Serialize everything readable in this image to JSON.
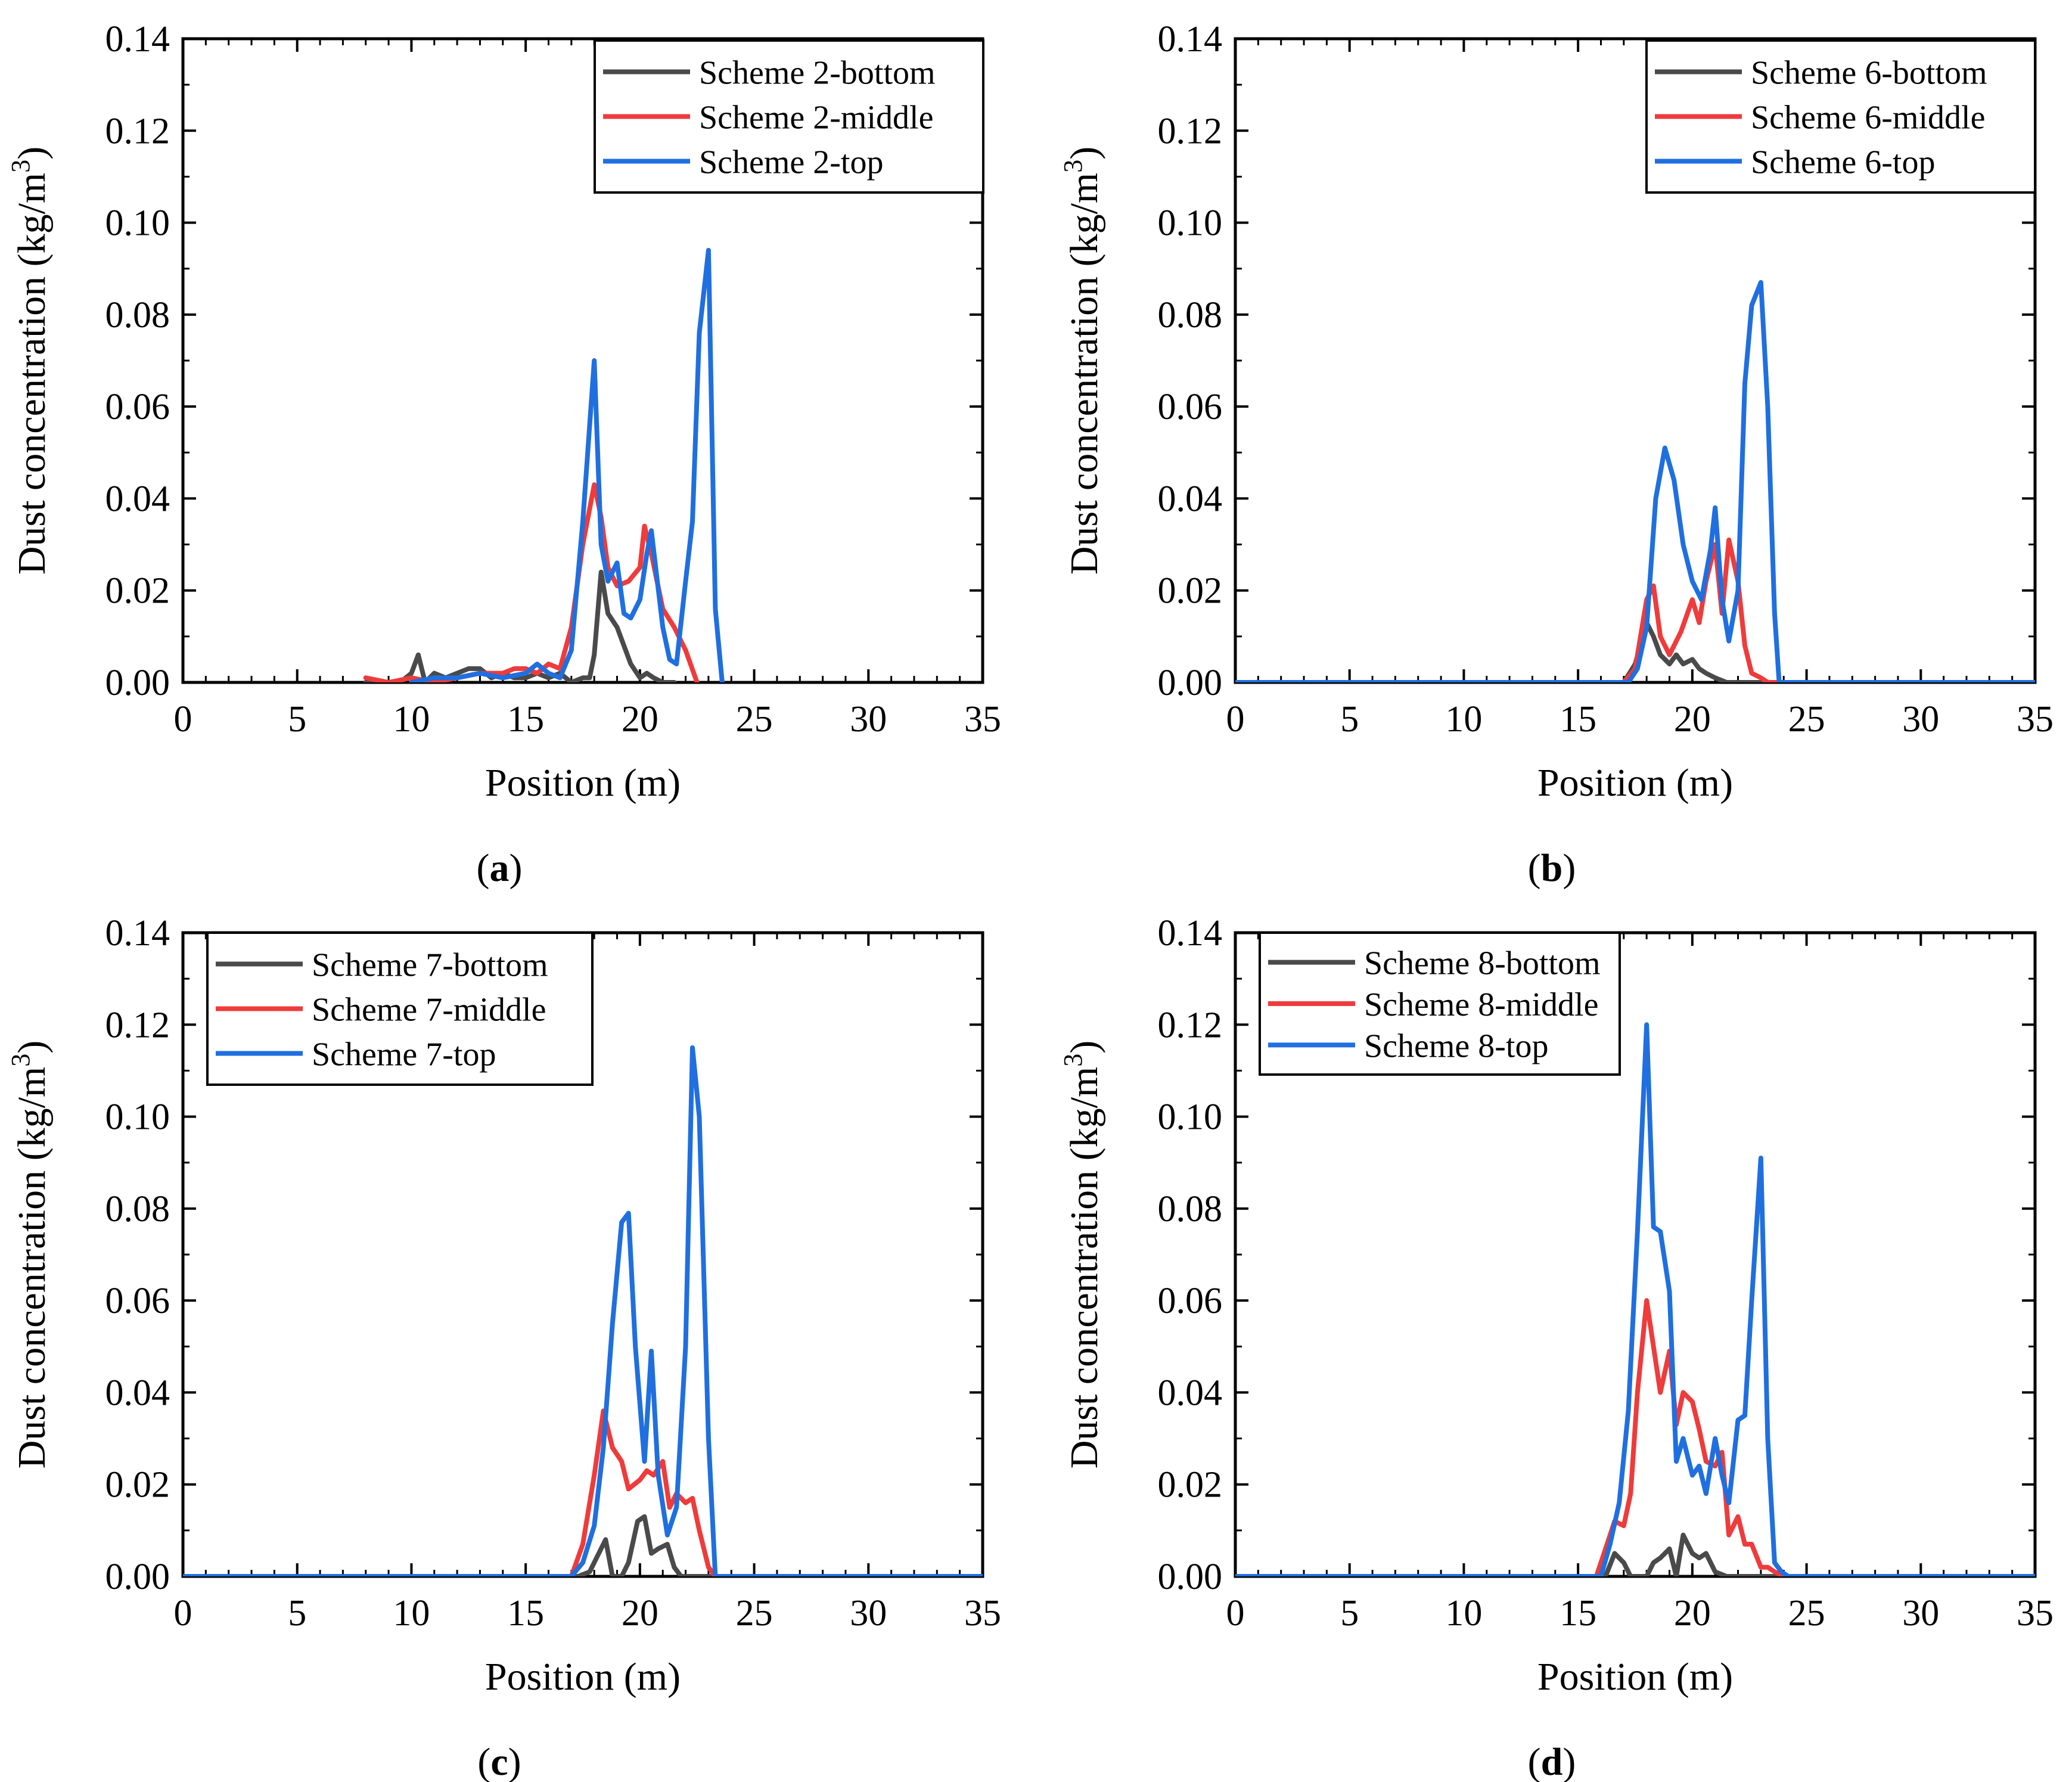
{
  "colors": {
    "bottom": "#4a4a4a",
    "middle": "#ef3b3b",
    "top": "#1f6fe0"
  },
  "chart_data": [
    {
      "type": "line",
      "panel_label": "a",
      "xlabel": "Position (m)",
      "ylabel": "Dust concentration (kg/m",
      "ylabel_sup": "3",
      "ylabel_close": ")",
      "xlim": [
        0,
        35
      ],
      "ylim": [
        0,
        0.14
      ],
      "xticks": [
        0,
        5,
        10,
        15,
        20,
        25,
        30,
        35
      ],
      "xtick_labels": [
        "0",
        "5",
        "10",
        "15",
        "20",
        "25",
        "30",
        "35"
      ],
      "yticks": [
        0,
        0.02,
        0.04,
        0.06,
        0.08,
        0.1,
        0.12,
        0.14
      ],
      "ytick_labels": [
        "0.00",
        "0.02",
        "0.04",
        "0.06",
        "0.08",
        "0.10",
        "0.12",
        "0.14"
      ],
      "legend_position": "top-right",
      "series": [
        {
          "name": "Scheme 2-bottom",
          "color_key": "bottom",
          "x": [
            8,
            9,
            9.5,
            10,
            10.3,
            10.6,
            11,
            11.5,
            12,
            12.5,
            13,
            13.5,
            14,
            14.5,
            15,
            15.5,
            16,
            16.5,
            17,
            17.5,
            17.8,
            18,
            18.3,
            18.6,
            19,
            19.3,
            19.6,
            20,
            20.3,
            20.6,
            21,
            21.5
          ],
          "y": [
            0,
            0,
            0,
            0.002,
            0.006,
            0,
            0.002,
            0.001,
            0.002,
            0.003,
            0.003,
            0.001,
            0.002,
            0.001,
            0.001,
            0.002,
            0.001,
            0.002,
            0,
            0.001,
            0.001,
            0.006,
            0.024,
            0.015,
            0.012,
            0.008,
            0.004,
            0.001,
            0.002,
            0.001,
            0,
            0
          ]
        },
        {
          "name": "Scheme 2-middle",
          "color_key": "middle",
          "x": [
            8,
            9,
            10,
            11,
            12,
            13,
            14,
            14.5,
            15,
            15.5,
            16,
            16.5,
            17,
            17.5,
            18,
            18.3,
            18.6,
            19,
            19.5,
            20,
            20.2,
            20.5,
            21,
            21.5,
            22,
            22.5
          ],
          "y": [
            0.001,
            0,
            0.001,
            0,
            0.001,
            0.002,
            0.002,
            0.003,
            0.003,
            0.002,
            0.004,
            0.003,
            0.012,
            0.03,
            0.043,
            0.036,
            0.025,
            0.021,
            0.022,
            0.025,
            0.034,
            0.028,
            0.016,
            0.012,
            0.007,
            0
          ]
        },
        {
          "name": "Scheme 2-top",
          "color_key": "top",
          "x": [
            10,
            11,
            12,
            13,
            14,
            15,
            15.5,
            16,
            16.5,
            17,
            17.5,
            18,
            18.3,
            18.6,
            19,
            19.3,
            19.6,
            20,
            20.3,
            20.5,
            21,
            21.3,
            21.6,
            22,
            22.3,
            22.6,
            23,
            23.3,
            23.6
          ],
          "y": [
            0,
            0.001,
            0.001,
            0.002,
            0.001,
            0.002,
            0.004,
            0.002,
            0.001,
            0.007,
            0.035,
            0.07,
            0.03,
            0.022,
            0.026,
            0.015,
            0.014,
            0.018,
            0.028,
            0.033,
            0.012,
            0.005,
            0.004,
            0.022,
            0.035,
            0.076,
            0.094,
            0.016,
            0
          ]
        }
      ],
      "legend": [
        "Scheme 2-bottom",
        "Scheme 2-middle",
        "Scheme 2-top"
      ]
    },
    {
      "type": "line",
      "panel_label": "b",
      "xlabel": "Position (m)",
      "ylabel": "Dust concentration (kg/m",
      "ylabel_sup": "3",
      "ylabel_close": ")",
      "xlim": [
        0,
        35
      ],
      "ylim": [
        0,
        0.14
      ],
      "xticks": [
        0,
        5,
        10,
        15,
        20,
        25,
        30,
        35
      ],
      "xtick_labels": [
        "0",
        "5",
        "10",
        "15",
        "20",
        "25",
        "30",
        "35"
      ],
      "yticks": [
        0,
        0.02,
        0.04,
        0.06,
        0.08,
        0.1,
        0.12,
        0.14
      ],
      "ytick_labels": [
        "0.00",
        "0.02",
        "0.04",
        "0.06",
        "0.08",
        "0.10",
        "0.12",
        "0.14"
      ],
      "legend_position": "top-right",
      "series": [
        {
          "name": "Scheme 6-bottom",
          "color_key": "bottom",
          "x": [
            0,
            17,
            17.5,
            18,
            18.3,
            18.6,
            19,
            19.3,
            19.6,
            20,
            20.3,
            20.6,
            21,
            21.5,
            35
          ],
          "y": [
            0,
            0,
            0.004,
            0.013,
            0.01,
            0.006,
            0.004,
            0.006,
            0.004,
            0.005,
            0.003,
            0.002,
            0.001,
            0,
            0
          ]
        },
        {
          "name": "Scheme 6-middle",
          "color_key": "middle",
          "x": [
            0,
            17,
            17.5,
            18,
            18.3,
            18.6,
            19,
            19.5,
            20,
            20.3,
            20.6,
            21,
            21.3,
            21.6,
            22,
            22.3,
            22.6,
            23,
            23.3,
            35
          ],
          "y": [
            0,
            0,
            0.003,
            0.018,
            0.021,
            0.01,
            0.006,
            0.011,
            0.018,
            0.013,
            0.022,
            0.03,
            0.015,
            0.031,
            0.022,
            0.008,
            0.002,
            0.001,
            0,
            0
          ]
        },
        {
          "name": "Scheme 6-top",
          "color_key": "top",
          "x": [
            0,
            17.2,
            17.6,
            18,
            18.4,
            18.8,
            19.2,
            19.6,
            20,
            20.4,
            20.8,
            21,
            21.3,
            21.6,
            22,
            22.3,
            22.6,
            23,
            23.3,
            23.6,
            23.8,
            35
          ],
          "y": [
            0,
            0,
            0.003,
            0.012,
            0.04,
            0.051,
            0.044,
            0.03,
            0.022,
            0.018,
            0.029,
            0.038,
            0.018,
            0.009,
            0.02,
            0.065,
            0.082,
            0.087,
            0.06,
            0.015,
            0,
            0
          ]
        }
      ],
      "legend": [
        "Scheme 6-bottom",
        "Scheme 6-middle",
        "Scheme 6-top"
      ]
    },
    {
      "type": "line",
      "panel_label": "c",
      "xlabel": "Position (m)",
      "ylabel": "Dust concentration (kg/m",
      "ylabel_sup": "3",
      "ylabel_close": ")",
      "xlim": [
        0,
        35
      ],
      "ylim": [
        0,
        0.14
      ],
      "xticks": [
        0,
        5,
        10,
        15,
        20,
        25,
        30,
        35
      ],
      "xtick_labels": [
        "0",
        "5",
        "10",
        "15",
        "20",
        "25",
        "30",
        "35"
      ],
      "yticks": [
        0,
        0.02,
        0.04,
        0.06,
        0.08,
        0.1,
        0.12,
        0.14
      ],
      "ytick_labels": [
        "0.00",
        "0.02",
        "0.04",
        "0.06",
        "0.08",
        "0.10",
        "0.12",
        "0.14"
      ],
      "legend_position": "top-left",
      "series": [
        {
          "name": "Scheme 7-bottom",
          "color_key": "bottom",
          "x": [
            0,
            17.3,
            17.8,
            18.2,
            18.5,
            18.8,
            19.2,
            19.5,
            19.9,
            20.2,
            20.5,
            20.8,
            21.2,
            21.5,
            21.8,
            35
          ],
          "y": [
            0,
            0,
            0.001,
            0.005,
            0.008,
            0,
            0,
            0.003,
            0.012,
            0.013,
            0.005,
            0.006,
            0.007,
            0.002,
            0,
            0
          ]
        },
        {
          "name": "Scheme 7-middle",
          "color_key": "middle",
          "x": [
            0,
            17,
            17.5,
            18,
            18.4,
            18.8,
            19.2,
            19.5,
            20,
            20.3,
            20.6,
            21,
            21.3,
            21.6,
            22,
            22.3,
            22.6,
            23,
            23.3,
            35
          ],
          "y": [
            0,
            0,
            0.007,
            0.022,
            0.036,
            0.028,
            0.025,
            0.019,
            0.021,
            0.023,
            0.022,
            0.025,
            0.015,
            0.018,
            0.016,
            0.017,
            0.01,
            0.002,
            0,
            0
          ]
        },
        {
          "name": "Scheme 7-top",
          "color_key": "top",
          "x": [
            0,
            17,
            17.5,
            18,
            18.4,
            18.8,
            19.2,
            19.5,
            19.8,
            20.2,
            20.5,
            20.8,
            21.2,
            21.6,
            22,
            22.3,
            22.6,
            23,
            23.3,
            35
          ],
          "y": [
            0,
            0,
            0.003,
            0.011,
            0.028,
            0.055,
            0.077,
            0.079,
            0.05,
            0.025,
            0.049,
            0.022,
            0.009,
            0.015,
            0.05,
            0.115,
            0.1,
            0.03,
            0,
            0
          ]
        }
      ],
      "legend": [
        "Scheme 7-bottom",
        "Scheme 7-middle",
        "Scheme 7-top"
      ]
    },
    {
      "type": "line",
      "panel_label": "d",
      "xlabel": "Position (m)",
      "ylabel": "Dust concentration (kg/m",
      "ylabel_sup": "3",
      "ylabel_close": ")",
      "xlim": [
        0,
        35
      ],
      "ylim": [
        0,
        0.14
      ],
      "xticks": [
        0,
        5,
        10,
        15,
        20,
        25,
        30,
        35
      ],
      "xtick_labels": [
        "0",
        "5",
        "10",
        "15",
        "20",
        "25",
        "30",
        "35"
      ],
      "yticks": [
        0,
        0.02,
        0.04,
        0.06,
        0.08,
        0.1,
        0.12,
        0.14
      ],
      "ytick_labels": [
        "0.00",
        "0.02",
        "0.04",
        "0.06",
        "0.08",
        "0.10",
        "0.12",
        "0.14"
      ],
      "legend_position": "top-left",
      "series": [
        {
          "name": "Scheme 8-bottom",
          "color_key": "bottom",
          "x": [
            0,
            16.2,
            16.6,
            17,
            17.3,
            17.6,
            18,
            18.3,
            18.6,
            19,
            19.3,
            19.6,
            20,
            20.3,
            20.6,
            21,
            21.5,
            35
          ],
          "y": [
            0,
            0,
            0.005,
            0.003,
            0,
            0,
            0,
            0.003,
            0.004,
            0.006,
            0,
            0.009,
            0.005,
            0.004,
            0.005,
            0.001,
            0,
            0
          ]
        },
        {
          "name": "Scheme 8-middle",
          "color_key": "middle",
          "x": [
            0,
            15.8,
            16.2,
            16.6,
            17,
            17.3,
            17.6,
            18,
            18.3,
            18.6,
            19,
            19.3,
            19.6,
            20,
            20.3,
            20.6,
            21,
            21.3,
            21.6,
            22,
            22.3,
            22.6,
            23,
            23.3,
            23.6,
            24,
            35
          ],
          "y": [
            0,
            0,
            0.006,
            0.012,
            0.011,
            0.018,
            0.04,
            0.06,
            0.05,
            0.04,
            0.049,
            0.033,
            0.04,
            0.038,
            0.032,
            0.025,
            0.024,
            0.027,
            0.009,
            0.013,
            0.007,
            0.007,
            0.002,
            0.002,
            0.001,
            0,
            0
          ]
        },
        {
          "name": "Scheme 8-top",
          "color_key": "top",
          "x": [
            0,
            16,
            16.4,
            16.8,
            17.2,
            17.6,
            18,
            18.3,
            18.6,
            19,
            19.3,
            19.6,
            20,
            20.3,
            20.6,
            21,
            21.3,
            21.6,
            22,
            22.3,
            22.6,
            23,
            23.3,
            23.6,
            23.9,
            24.2,
            35
          ],
          "y": [
            0,
            0,
            0.007,
            0.016,
            0.036,
            0.075,
            0.12,
            0.076,
            0.075,
            0.062,
            0.025,
            0.03,
            0.022,
            0.024,
            0.018,
            0.03,
            0.022,
            0.016,
            0.034,
            0.035,
            0.06,
            0.091,
            0.03,
            0.003,
            0.001,
            0,
            0
          ]
        }
      ],
      "legend": [
        "Scheme 8-bottom",
        "Scheme 8-middle",
        "Scheme 8-top"
      ]
    }
  ]
}
